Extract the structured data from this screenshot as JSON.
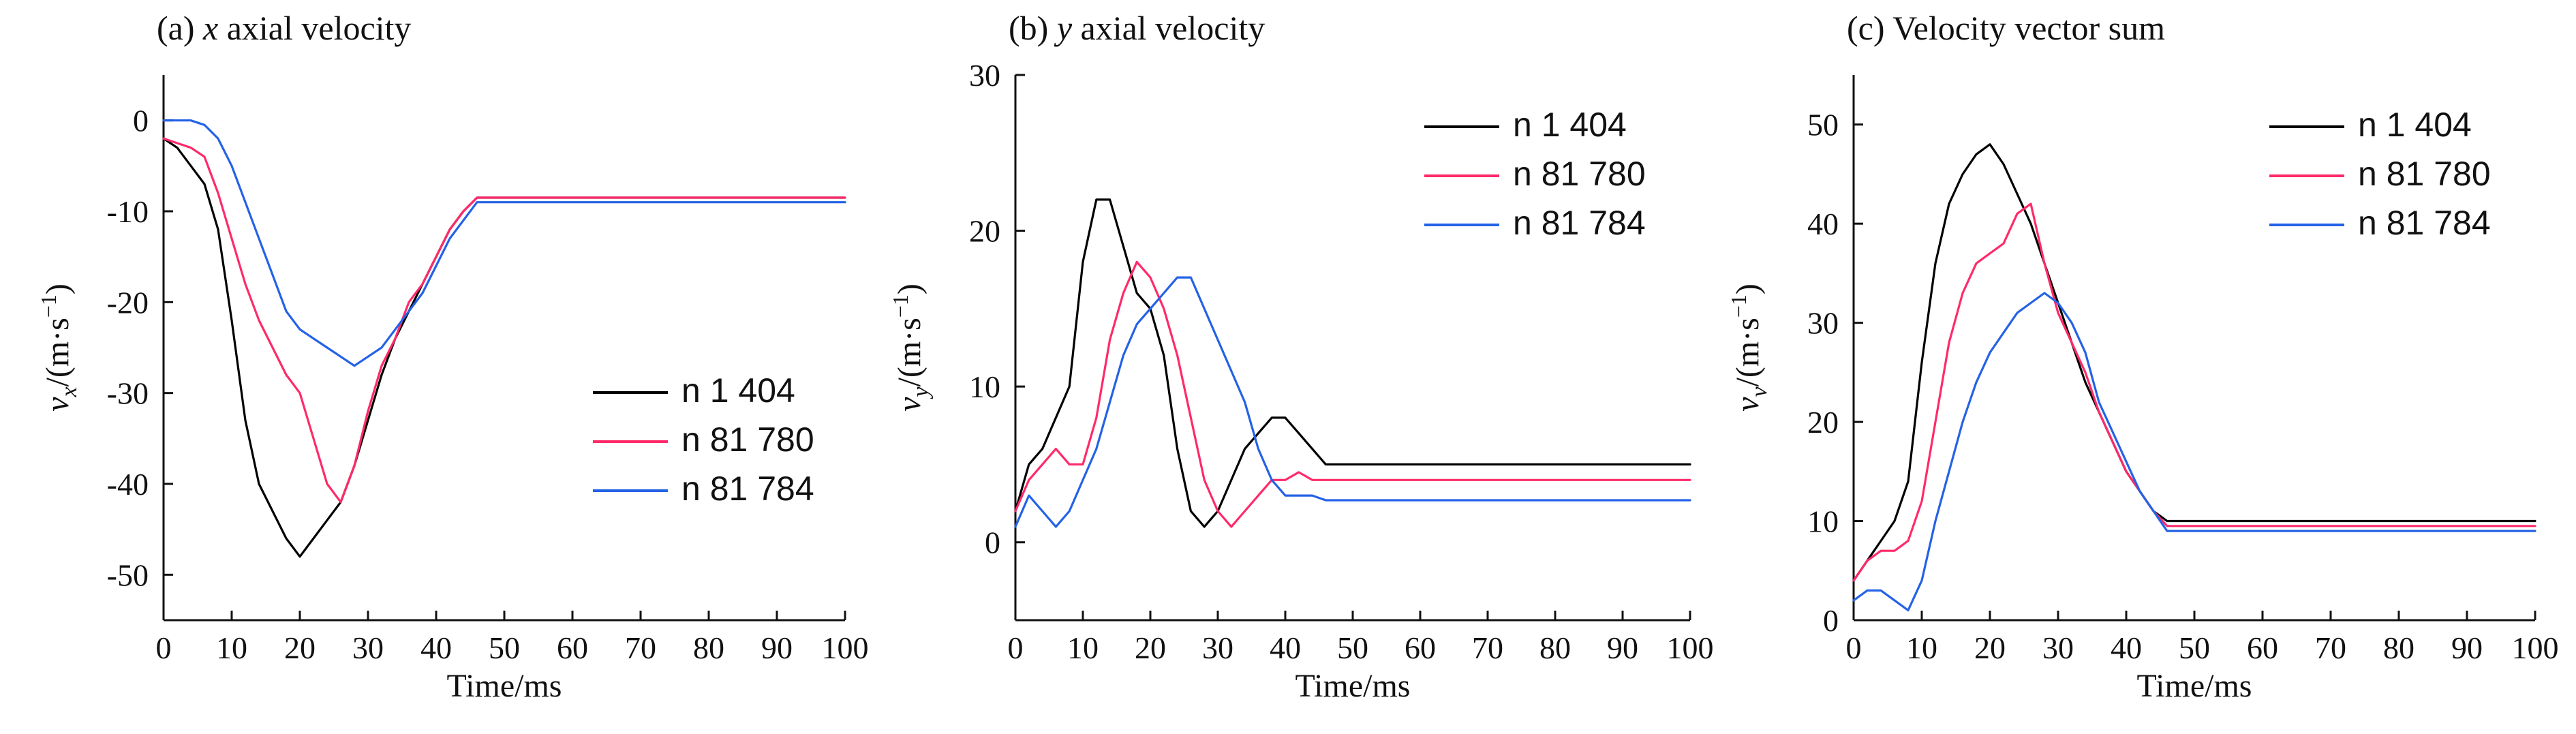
{
  "colors": {
    "n 1 404": "#000000",
    "n 81 780": "#ff2a6a",
    "n 81 784": "#2462e6"
  },
  "chart_data": [
    {
      "type": "line",
      "title": "(a) x axial velocity",
      "title_prefix": "(a) ",
      "title_italic": "x",
      "title_suffix": " axial velocity",
      "xlabel": "Time/ms",
      "ylabel": "v_x/(m·s⁻¹)",
      "ylabel_var": "v",
      "ylabel_sub": "x",
      "ylabel_unit": "/(m·s",
      "ylabel_exp": "−1",
      "ylabel_close": ")",
      "xlim": [
        0,
        100
      ],
      "ylim": [
        -55,
        5
      ],
      "xticks": [
        0,
        10,
        20,
        30,
        40,
        50,
        60,
        70,
        80,
        90,
        100
      ],
      "yticks": [
        0,
        -10,
        -20,
        -30,
        -40,
        -50
      ],
      "legend_position": "center-right",
      "series": [
        {
          "name": "n 1 404",
          "x": [
            0,
            2,
            4,
            6,
            8,
            10,
            12,
            14,
            16,
            18,
            20,
            22,
            24,
            26,
            28,
            30,
            32,
            34,
            36,
            38,
            40,
            42,
            44,
            46,
            50,
            60,
            70,
            80,
            90,
            100
          ],
          "y": [
            -2,
            -3,
            -5,
            -7,
            -12,
            -22,
            -33,
            -40,
            -43,
            -46,
            -48,
            -46,
            -44,
            -42,
            -38,
            -33,
            -28,
            -24,
            -21,
            -18,
            -15,
            -12,
            -10,
            -8.5,
            -8.5,
            -8.5,
            -8.5,
            -8.5,
            -8.5,
            -8.5
          ]
        },
        {
          "name": "n 81 780",
          "x": [
            0,
            2,
            4,
            6,
            8,
            10,
            12,
            14,
            16,
            18,
            20,
            22,
            24,
            26,
            28,
            30,
            32,
            34,
            36,
            38,
            40,
            42,
            44,
            46,
            50,
            60,
            70,
            80,
            90,
            100
          ],
          "y": [
            -2,
            -2.5,
            -3,
            -4,
            -8,
            -13,
            -18,
            -22,
            -25,
            -28,
            -30,
            -35,
            -40,
            -42,
            -38,
            -32,
            -27,
            -24,
            -20,
            -18,
            -15,
            -12,
            -10,
            -8.5,
            -8.5,
            -8.5,
            -8.5,
            -8.5,
            -8.5,
            -8.5
          ]
        },
        {
          "name": "n 81 784",
          "x": [
            0,
            2,
            4,
            6,
            8,
            10,
            12,
            14,
            16,
            18,
            20,
            22,
            24,
            26,
            28,
            30,
            32,
            34,
            36,
            38,
            40,
            42,
            44,
            46,
            50,
            60,
            70,
            80,
            90,
            100
          ],
          "y": [
            0,
            0,
            0,
            -0.5,
            -2,
            -5,
            -9,
            -13,
            -17,
            -21,
            -23,
            -24,
            -25,
            -26,
            -27,
            -26,
            -25,
            -23,
            -21,
            -19,
            -16,
            -13,
            -11,
            -9,
            -9,
            -9,
            -9,
            -9,
            -9,
            -9
          ]
        }
      ]
    },
    {
      "type": "line",
      "title": "(b) y axial velocity",
      "title_prefix": "(b) ",
      "title_italic": "y",
      "title_suffix": " axial velocity",
      "xlabel": "Time/ms",
      "ylabel": "v_y/(m·s⁻¹)",
      "ylabel_var": "v",
      "ylabel_sub": "y",
      "ylabel_unit": "/(m·s",
      "ylabel_exp": "−1",
      "ylabel_close": ")",
      "xlim": [
        0,
        100
      ],
      "ylim": [
        -5,
        30
      ],
      "xticks": [
        0,
        10,
        20,
        30,
        40,
        50,
        60,
        70,
        80,
        90,
        100
      ],
      "yticks": [
        0,
        10,
        20,
        30
      ],
      "legend_position": "top-right",
      "series": [
        {
          "name": "n 1 404",
          "x": [
            0,
            2,
            4,
            6,
            8,
            10,
            12,
            14,
            16,
            18,
            20,
            22,
            24,
            26,
            28,
            30,
            32,
            34,
            36,
            38,
            40,
            42,
            44,
            46,
            50,
            60,
            70,
            80,
            90,
            100
          ],
          "y": [
            2,
            5,
            6,
            8,
            10,
            18,
            22,
            22,
            19,
            16,
            15,
            12,
            6,
            2,
            1,
            2,
            4,
            6,
            7,
            8,
            8,
            7,
            6,
            5,
            5,
            5,
            5,
            5,
            5,
            5
          ]
        },
        {
          "name": "n 81 780",
          "x": [
            0,
            2,
            4,
            6,
            8,
            10,
            12,
            14,
            16,
            18,
            20,
            22,
            24,
            26,
            28,
            30,
            32,
            34,
            36,
            38,
            40,
            42,
            44,
            46,
            50,
            60,
            70,
            80,
            90,
            100
          ],
          "y": [
            2,
            4,
            5,
            6,
            5,
            5,
            8,
            13,
            16,
            18,
            17,
            15,
            12,
            8,
            4,
            2,
            1,
            2,
            3,
            4,
            4,
            4.5,
            4,
            4,
            4,
            4,
            4,
            4,
            4,
            4
          ]
        },
        {
          "name": "n 81 784",
          "x": [
            0,
            2,
            4,
            6,
            8,
            10,
            12,
            14,
            16,
            18,
            20,
            22,
            24,
            26,
            28,
            30,
            32,
            34,
            36,
            38,
            40,
            42,
            44,
            46,
            50,
            60,
            70,
            80,
            90,
            100
          ],
          "y": [
            1,
            3,
            2,
            1,
            2,
            4,
            6,
            9,
            12,
            14,
            15,
            16,
            17,
            17,
            15,
            13,
            11,
            9,
            6,
            4,
            3,
            3,
            3,
            2.7,
            2.7,
            2.7,
            2.7,
            2.7,
            2.7,
            2.7
          ]
        }
      ]
    },
    {
      "type": "line",
      "title": "(c) Velocity vector sum",
      "title_prefix": "(c) Velocity vector sum",
      "title_italic": "",
      "title_suffix": "",
      "xlabel": "Time/ms",
      "ylabel": "v_v/(m·s⁻¹)",
      "ylabel_var": "v",
      "ylabel_sub": "v",
      "ylabel_unit": "/(m·s",
      "ylabel_exp": "−1",
      "ylabel_close": ")",
      "xlim": [
        0,
        100
      ],
      "ylim": [
        0,
        55
      ],
      "xticks": [
        0,
        10,
        20,
        30,
        40,
        50,
        60,
        70,
        80,
        90,
        100
      ],
      "yticks": [
        0,
        10,
        20,
        30,
        40,
        50
      ],
      "legend_position": "top-right",
      "series": [
        {
          "name": "n 1 404",
          "x": [
            0,
            2,
            4,
            6,
            8,
            10,
            12,
            14,
            16,
            18,
            20,
            22,
            24,
            26,
            28,
            30,
            32,
            34,
            36,
            38,
            40,
            42,
            44,
            46,
            50,
            60,
            70,
            80,
            90,
            100
          ],
          "y": [
            4,
            6,
            8,
            10,
            14,
            26,
            36,
            42,
            45,
            47,
            48,
            46,
            43,
            40,
            36,
            32,
            28,
            24,
            21,
            18,
            15,
            13,
            11,
            10,
            10,
            10,
            10,
            10,
            10,
            10
          ]
        },
        {
          "name": "n 81 780",
          "x": [
            0,
            2,
            4,
            6,
            8,
            10,
            12,
            14,
            16,
            18,
            20,
            22,
            24,
            26,
            28,
            30,
            32,
            34,
            36,
            38,
            40,
            42,
            44,
            46,
            50,
            60,
            70,
            80,
            90,
            100
          ],
          "y": [
            4,
            6,
            7,
            7,
            8,
            12,
            20,
            28,
            33,
            36,
            37,
            38,
            41,
            42,
            36,
            31,
            28,
            25,
            21,
            18,
            15,
            13,
            11,
            9.5,
            9.5,
            9.5,
            9.5,
            9.5,
            9.5,
            9.5
          ]
        },
        {
          "name": "n 81 784",
          "x": [
            0,
            2,
            4,
            6,
            8,
            10,
            12,
            14,
            16,
            18,
            20,
            22,
            24,
            26,
            28,
            30,
            32,
            34,
            36,
            38,
            40,
            42,
            44,
            46,
            50,
            60,
            70,
            80,
            90,
            100
          ],
          "y": [
            2,
            3,
            3,
            2,
            1,
            4,
            10,
            15,
            20,
            24,
            27,
            29,
            31,
            32,
            33,
            32,
            30,
            27,
            22,
            19,
            16,
            13,
            11,
            9,
            9,
            9,
            9,
            9,
            9,
            9
          ]
        }
      ]
    }
  ]
}
